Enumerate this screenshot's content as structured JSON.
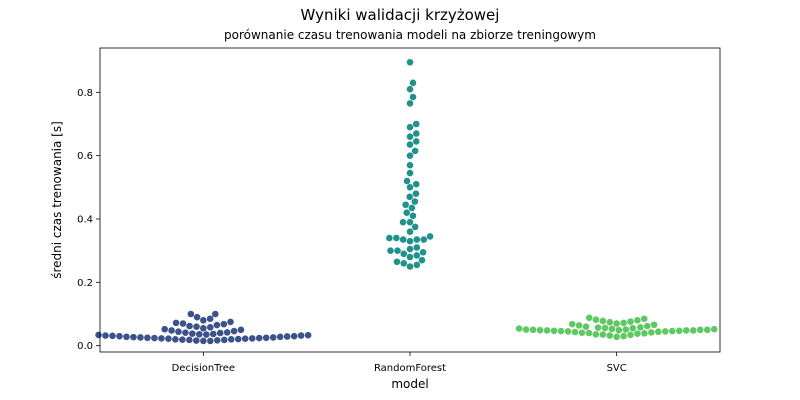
{
  "chart_data": {
    "type": "scatter",
    "subtype": "swarm",
    "title": "Wyniki walidacji krzyżowej",
    "subtitle": "porównanie czasu trenowania modeli na zbiorze treningowym",
    "xlabel": "model",
    "ylabel": "średni czas trenowania [s]",
    "ylim": [
      -0.02,
      0.94
    ],
    "yticks": [
      "0.0",
      "0.2",
      "0.4",
      "0.6",
      "0.8"
    ],
    "grid": false,
    "legend": "none",
    "categories": [
      "DecisionTree",
      "RandomForest",
      "SVC"
    ],
    "colors": [
      "#3b528b",
      "#21918c",
      "#5ec962"
    ],
    "series": [
      {
        "values": [
          0.015,
          0.015,
          0.016,
          0.017,
          0.018,
          0.018,
          0.019,
          0.02,
          0.02,
          0.021,
          0.022,
          0.022,
          0.023,
          0.023,
          0.024,
          0.024,
          0.025,
          0.025,
          0.026,
          0.026,
          0.027,
          0.028,
          0.028,
          0.029,
          0.03,
          0.03,
          0.031,
          0.032,
          0.032,
          0.033,
          0.034,
          0.035,
          0.036,
          0.037,
          0.038,
          0.04,
          0.041,
          0.042,
          0.044,
          0.046,
          0.048,
          0.05,
          0.052,
          0.055,
          0.058,
          0.06,
          0.062,
          0.065,
          0.068,
          0.07,
          0.072,
          0.075,
          0.08,
          0.085,
          0.09,
          0.1,
          0.1
        ]
      },
      {
        "values": [
          0.25,
          0.255,
          0.26,
          0.265,
          0.27,
          0.28,
          0.285,
          0.29,
          0.295,
          0.3,
          0.3,
          0.305,
          0.31,
          0.33,
          0.335,
          0.335,
          0.335,
          0.34,
          0.34,
          0.345,
          0.36,
          0.375,
          0.39,
          0.39,
          0.41,
          0.42,
          0.435,
          0.445,
          0.455,
          0.47,
          0.48,
          0.5,
          0.51,
          0.52,
          0.545,
          0.57,
          0.6,
          0.615,
          0.635,
          0.645,
          0.66,
          0.67,
          0.69,
          0.7,
          0.765,
          0.785,
          0.81,
          0.83,
          0.895
        ]
      },
      {
        "values": [
          0.028,
          0.03,
          0.032,
          0.034,
          0.035,
          0.036,
          0.038,
          0.039,
          0.04,
          0.041,
          0.042,
          0.043,
          0.044,
          0.045,
          0.045,
          0.046,
          0.046,
          0.047,
          0.047,
          0.048,
          0.048,
          0.048,
          0.049,
          0.049,
          0.05,
          0.05,
          0.05,
          0.051,
          0.051,
          0.052,
          0.053,
          0.054,
          0.055,
          0.056,
          0.057,
          0.058,
          0.06,
          0.062,
          0.064,
          0.066,
          0.068,
          0.07,
          0.072,
          0.074,
          0.076,
          0.078,
          0.08,
          0.082,
          0.085,
          0.088
        ]
      }
    ]
  }
}
